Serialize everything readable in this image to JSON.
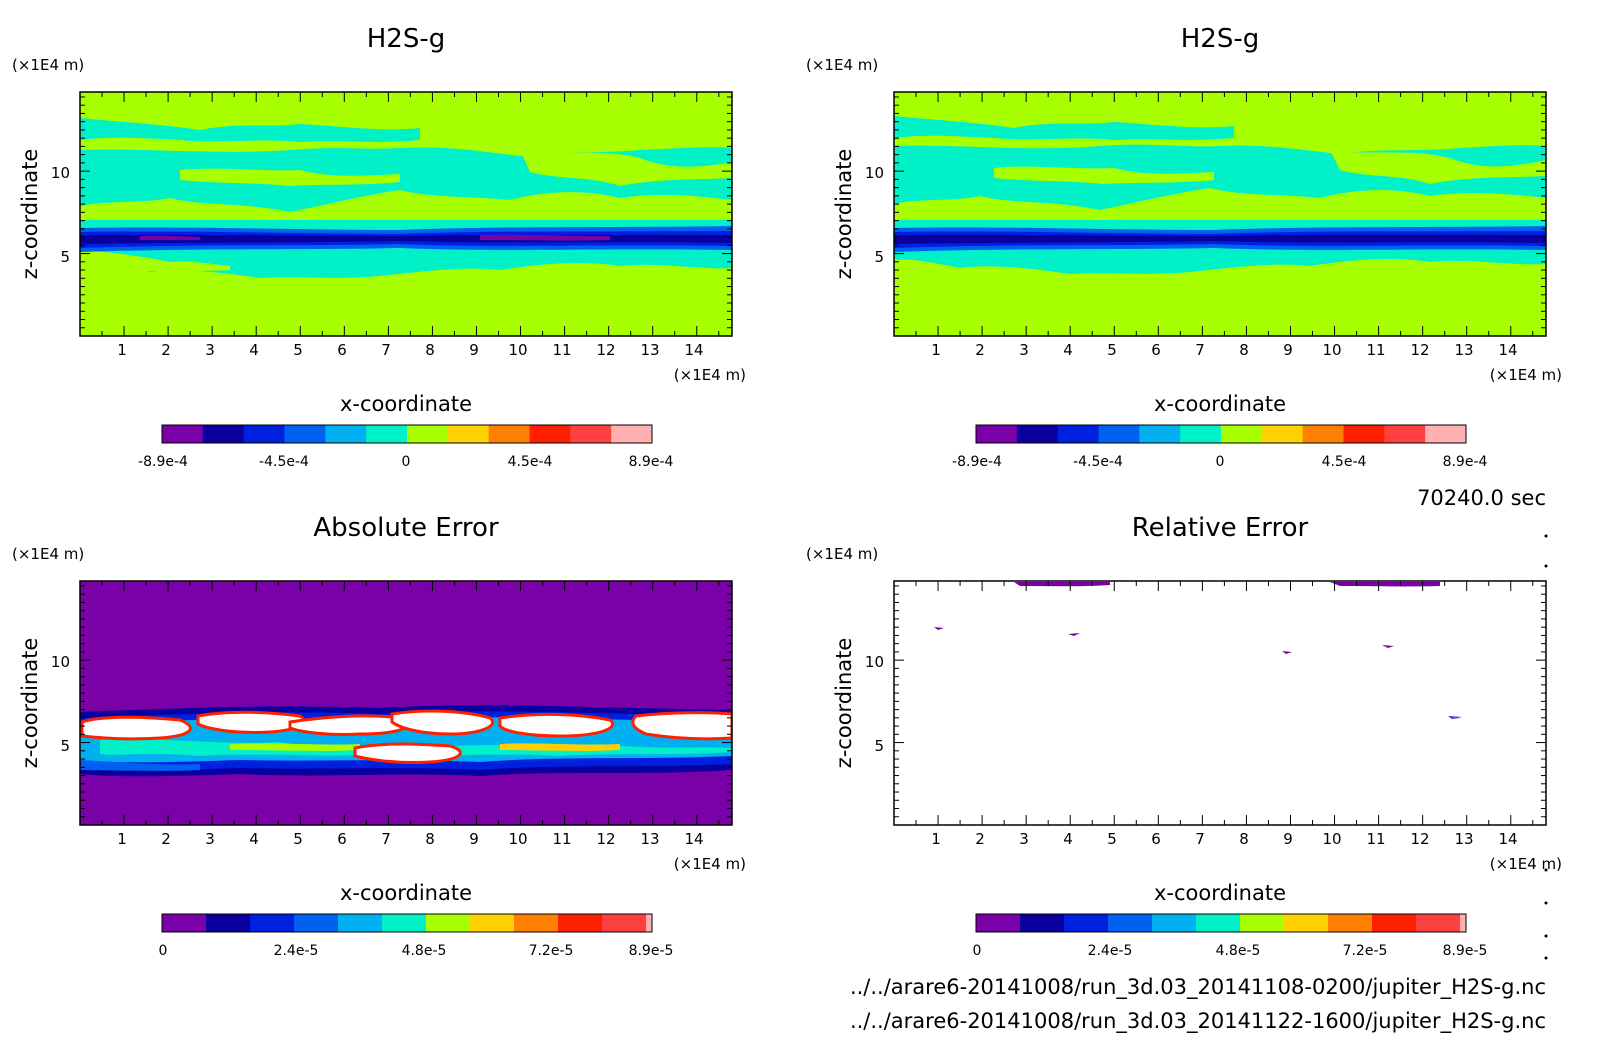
{
  "footer": {
    "time": "70240.0 sec",
    "file1": "../../arare6-20141008/run_3d.03_20141108-0200/jupiter_H2S-g.nc",
    "file2": "../../arare6-20141008/run_3d.03_20141122-1600/jupiter_H2S-g.nc"
  },
  "chart_data": [
    {
      "type": "heatmap",
      "title": "H2S-g",
      "xlabel": "x-coordinate",
      "ylabel": "z-coordinate",
      "x_unit": "(×1E4 m)",
      "y_unit": "(×1E4 m)",
      "xlim": [
        0,
        14.8
      ],
      "ylim": [
        0,
        14.8
      ],
      "xticks": [
        "1",
        "2",
        "3",
        "4",
        "5",
        "6",
        "7",
        "8",
        "9",
        "10",
        "11",
        "12",
        "13",
        "14"
      ],
      "yticks": [
        "5",
        "10"
      ],
      "colorbar": {
        "range": [
          -0.00089,
          0.00089
        ],
        "labels": [
          "-8.9e-4",
          "-4.5e-4",
          "0",
          "4.5e-4",
          "8.9e-4"
        ],
        "colors": [
          "#7a00a8",
          "#0a00a0",
          "#0020e0",
          "#0060f0",
          "#00b0f0",
          "#00f0c8",
          "#a8ff00",
          "#ffd000",
          "#ff8000",
          "#ff2000",
          "#ff4040",
          "#ffb0b0"
        ]
      },
      "field": "low layer 0-3.5 and upper 12.5-14.8 yellow-green; cyan band around 3.5-6 and 7-12; dark blue/purple band at z≈6.1"
    },
    {
      "type": "heatmap",
      "title": "H2S-g",
      "xlabel": "x-coordinate",
      "ylabel": "z-coordinate",
      "x_unit": "(×1E4 m)",
      "y_unit": "(×1E4 m)",
      "xlim": [
        0,
        14.8
      ],
      "ylim": [
        0,
        14.8
      ],
      "xticks": [
        "1",
        "2",
        "3",
        "4",
        "5",
        "6",
        "7",
        "8",
        "9",
        "10",
        "11",
        "12",
        "13",
        "14"
      ],
      "yticks": [
        "5",
        "10"
      ],
      "colorbar": {
        "range": [
          -0.00089,
          0.00089
        ],
        "labels": [
          "-8.9e-4",
          "-4.5e-4",
          "0",
          "4.5e-4",
          "8.9e-4"
        ],
        "colors": [
          "#7a00a8",
          "#0a00a0",
          "#0020e0",
          "#0060f0",
          "#00b0f0",
          "#00f0c8",
          "#a8ff00",
          "#ffd000",
          "#ff8000",
          "#ff2000",
          "#ff4040",
          "#ffb0b0"
        ]
      },
      "field": "same structure as left panel with slightly shifted cloud filaments"
    },
    {
      "type": "heatmap",
      "title": "Absolute Error",
      "xlabel": "x-coordinate",
      "ylabel": "z-coordinate",
      "x_unit": "(×1E4 m)",
      "y_unit": "(×1E4 m)",
      "xlim": [
        0,
        14.8
      ],
      "ylim": [
        0,
        14.8
      ],
      "xticks": [
        "1",
        "2",
        "3",
        "4",
        "5",
        "6",
        "7",
        "8",
        "9",
        "10",
        "11",
        "12",
        "13",
        "14"
      ],
      "yticks": [
        "5",
        "10"
      ],
      "colorbar": {
        "range": [
          0,
          8.9e-05
        ],
        "labels": [
          "0",
          "2.4e-5",
          "4.8e-5",
          "7.2e-5",
          "8.9e-5"
        ],
        "colors": [
          "#7a00a8",
          "#0a00a0",
          "#0020e0",
          "#0060f0",
          "#00b0f0",
          "#00f0c8",
          "#a8ff00",
          "#ffd000",
          "#ff8000",
          "#ff2000",
          "#ff4040",
          "#ffb0b0"
        ]
      },
      "field": "purple background; error band z≈2.5-6.5 with white saturated blobs"
    },
    {
      "type": "heatmap",
      "title": "Relative Error",
      "xlabel": "x-coordinate",
      "ylabel": "z-coordinate",
      "x_unit": "(×1E4 m)",
      "y_unit": "(×1E4 m)",
      "xlim": [
        0,
        14.8
      ],
      "ylim": [
        0,
        14.8
      ],
      "xticks": [
        "1",
        "2",
        "3",
        "4",
        "5",
        "6",
        "7",
        "8",
        "9",
        "10",
        "11",
        "12",
        "13",
        "14"
      ],
      "yticks": [
        "5",
        "10"
      ],
      "colorbar": {
        "range": [
          0,
          8.9e-05
        ],
        "labels": [
          "0",
          "2.4e-5",
          "4.8e-5",
          "7.2e-5",
          "8.9e-5"
        ],
        "colors": [
          "#7a00a8",
          "#0a00a0",
          "#0020e0",
          "#0060f0",
          "#00b0f0",
          "#00f0c8",
          "#a8ff00",
          "#ffd000",
          "#ff8000",
          "#ff2000",
          "#ff4040",
          "#ffb0b0"
        ]
      },
      "field": "mostly white (saturated); small purple specks near top"
    }
  ]
}
